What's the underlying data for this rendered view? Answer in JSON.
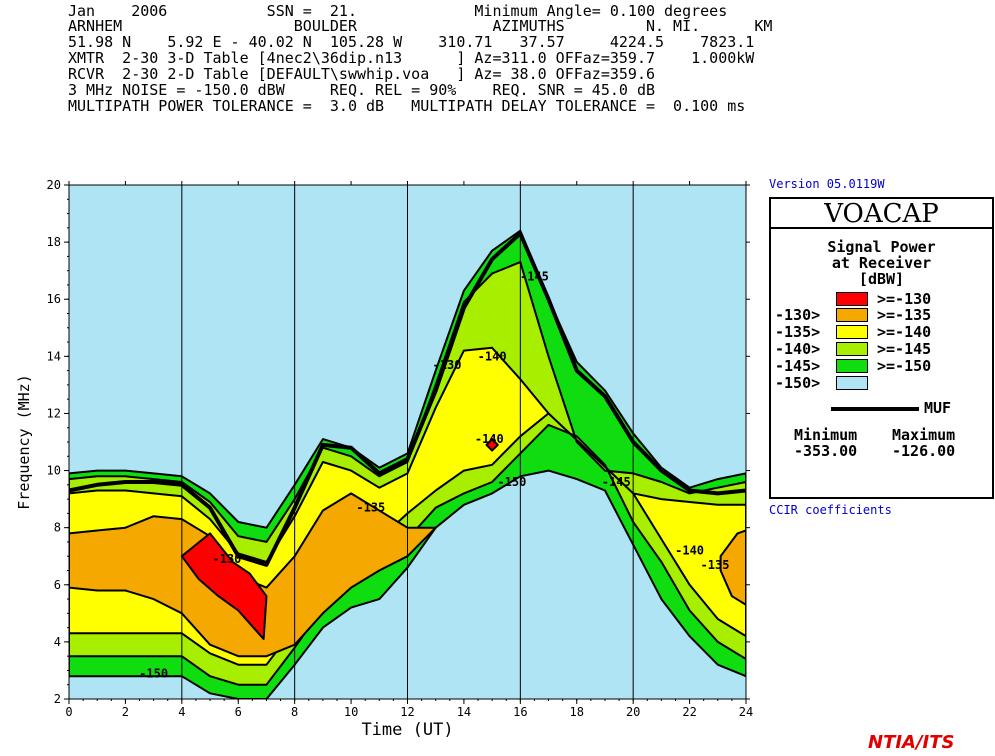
{
  "header": {
    "lines": [
      "Jan    2006           SSN =  21.             Minimum Angle= 0.100 degrees",
      "ARNHEM                   BOULDER               AZIMUTHS         N. MI.      KM",
      "51.98 N    5.92 E - 40.02 N  105.28 W    310.71   37.57     4224.5    7823.1",
      "XMTR  2-30 3-D Table [4nec2\\36dip.n13      ] Az=311.0 OFFaz=359.7    1.000kW",
      "RCVR  2-30 2-D Table [DEFAULT\\swwhip.voa   ] Az= 38.0 OFFaz=359.6",
      "3 MHz NOISE = -150.0 dBW     REQ. REL = 90%    REQ. SNR = 45.0 dB",
      "MULTIPATH POWER TOLERANCE =  3.0 dB   MULTIPATH DELAY TOLERANCE =  0.100 ms"
    ]
  },
  "version": "Version 05.0119W",
  "coefficients": "CCIR coefficients",
  "footer": "NTIA/ITS",
  "legend": {
    "app": "VOACAP",
    "title_lines": [
      "Signal Power",
      "at Receiver",
      "[dBW]"
    ],
    "entries": [
      {
        "left": "",
        "right": ">=-130",
        "color": "#ff0000"
      },
      {
        "left": "-130>",
        "right": ">=-135",
        "color": "#f5a800"
      },
      {
        "left": "-135>",
        "right": ">=-140",
        "color": "#ffff00"
      },
      {
        "left": "-140>",
        "right": ">=-145",
        "color": "#a8ee00"
      },
      {
        "left": "-145>",
        "right": ">=-150",
        "color": "#10dd10"
      },
      {
        "left": "-150>",
        "right": "",
        "color": "#aee4f4"
      }
    ],
    "muf_label": "MUF",
    "min_label": "Minimum",
    "max_label": "Maximum",
    "min_value": "-353.00",
    "max_value": "-126.00"
  },
  "chart_data": {
    "type": "heatmap",
    "xlabel": "Time (UT)",
    "ylabel": "Frequency (MHz)",
    "xlim": [
      0,
      24
    ],
    "ylim": [
      2,
      20
    ],
    "x_ticks": [
      0,
      2,
      4,
      6,
      8,
      10,
      12,
      14,
      16,
      18,
      20,
      22,
      24
    ],
    "y_ticks": [
      2,
      4,
      6,
      8,
      10,
      12,
      14,
      16,
      18,
      20
    ],
    "background_color": "#aee4f4",
    "regions": [
      {
        "level": ">=-150",
        "color": "#10dd10",
        "upper": [
          [
            0,
            9.9
          ],
          [
            1,
            10.0
          ],
          [
            2,
            10.0
          ],
          [
            3,
            9.9
          ],
          [
            4,
            9.8
          ],
          [
            5,
            9.2
          ],
          [
            6,
            8.2
          ],
          [
            7,
            8.0
          ],
          [
            8,
            9.5
          ],
          [
            9,
            11.1
          ],
          [
            10,
            10.8
          ],
          [
            11,
            10.1
          ],
          [
            12,
            10.6
          ],
          [
            13,
            13.5
          ],
          [
            14,
            16.3
          ],
          [
            15,
            17.7
          ],
          [
            16,
            18.4
          ],
          [
            17,
            16.0
          ],
          [
            18,
            13.8
          ],
          [
            19,
            12.8
          ],
          [
            20,
            11.3
          ],
          [
            21,
            10.1
          ],
          [
            22,
            9.4
          ],
          [
            23,
            9.7
          ],
          [
            24,
            9.9
          ]
        ],
        "lower": [
          [
            0,
            2.8
          ],
          [
            1,
            2.8
          ],
          [
            2,
            2.8
          ],
          [
            3,
            2.8
          ],
          [
            4,
            2.8
          ],
          [
            5,
            2.2
          ],
          [
            6,
            2.0
          ],
          [
            7,
            2.0
          ],
          [
            8,
            3.2
          ],
          [
            9,
            4.5
          ],
          [
            10,
            5.2
          ],
          [
            11,
            5.5
          ],
          [
            12,
            6.6
          ],
          [
            13,
            8.0
          ],
          [
            14,
            8.8
          ],
          [
            15,
            9.2
          ],
          [
            16,
            9.8
          ],
          [
            17,
            10.0
          ],
          [
            18,
            9.7
          ],
          [
            19,
            9.3
          ],
          [
            20,
            7.4
          ],
          [
            21,
            5.5
          ],
          [
            22,
            4.2
          ],
          [
            23,
            3.2
          ],
          [
            24,
            2.8
          ]
        ]
      },
      {
        "level": ">=-145",
        "color": "#a8ee00",
        "upper": [
          [
            0,
            9.7
          ],
          [
            1,
            9.8
          ],
          [
            2,
            9.8
          ],
          [
            3,
            9.7
          ],
          [
            4,
            9.6
          ],
          [
            5,
            8.9
          ],
          [
            6,
            7.7
          ],
          [
            7,
            7.5
          ],
          [
            8,
            9.0
          ],
          [
            9,
            10.8
          ],
          [
            10,
            10.5
          ],
          [
            11,
            9.8
          ],
          [
            12,
            10.3
          ],
          [
            13,
            13.0
          ],
          [
            14,
            15.9
          ],
          [
            15,
            16.9
          ],
          [
            16,
            17.3
          ],
          [
            17,
            14.0
          ],
          [
            18,
            11.0
          ],
          [
            19,
            10.0
          ],
          [
            20,
            9.9
          ],
          [
            21,
            9.6
          ],
          [
            22,
            9.2
          ],
          [
            23,
            9.4
          ],
          [
            24,
            9.6
          ]
        ],
        "lower": [
          [
            0,
            3.5
          ],
          [
            1,
            3.5
          ],
          [
            2,
            3.5
          ],
          [
            3,
            3.5
          ],
          [
            4,
            3.5
          ],
          [
            5,
            2.8
          ],
          [
            6,
            2.5
          ],
          [
            7,
            2.5
          ],
          [
            8,
            3.8
          ],
          [
            9,
            5.2
          ],
          [
            10,
            6.2
          ],
          [
            11,
            6.5
          ],
          [
            12,
            7.6
          ],
          [
            13,
            8.7
          ],
          [
            14,
            9.2
          ],
          [
            15,
            9.6
          ],
          [
            16,
            10.6
          ],
          [
            17,
            11.6
          ],
          [
            18,
            11.2
          ],
          [
            19,
            10.2
          ],
          [
            20,
            8.2
          ],
          [
            21,
            6.8
          ],
          [
            22,
            5.1
          ],
          [
            23,
            4.0
          ],
          [
            24,
            3.4
          ]
        ]
      },
      {
        "level": ">=-140",
        "color": "#ffff00",
        "upper": [
          [
            0,
            9.2
          ],
          [
            1,
            9.3
          ],
          [
            2,
            9.3
          ],
          [
            3,
            9.2
          ],
          [
            4,
            9.1
          ],
          [
            5,
            8.3
          ],
          [
            6,
            7.1
          ],
          [
            7,
            6.8
          ],
          [
            8,
            8.4
          ],
          [
            9,
            10.3
          ],
          [
            10,
            10.0
          ],
          [
            11,
            9.4
          ],
          [
            12,
            9.9
          ],
          [
            13,
            12.2
          ],
          [
            14,
            14.2
          ],
          [
            15,
            14.3
          ],
          [
            16,
            13.2
          ],
          [
            17,
            12.0
          ],
          [
            20,
            9.2
          ],
          [
            21,
            9.0
          ],
          [
            22,
            8.9
          ],
          [
            23,
            8.8
          ],
          [
            24,
            8.8
          ]
        ],
        "lower": [
          [
            0,
            4.3
          ],
          [
            1,
            4.3
          ],
          [
            2,
            4.3
          ],
          [
            3,
            4.3
          ],
          [
            4,
            4.3
          ],
          [
            5,
            3.6
          ],
          [
            6,
            3.2
          ],
          [
            7,
            3.2
          ],
          [
            8,
            4.5
          ],
          [
            9,
            6.2
          ],
          [
            10,
            7.1
          ],
          [
            11,
            7.6
          ],
          [
            12,
            8.5
          ],
          [
            13,
            9.3
          ],
          [
            14,
            10.0
          ],
          [
            15,
            10.2
          ],
          [
            16,
            11.2
          ],
          [
            17,
            12.0
          ],
          [
            20,
            9.2
          ],
          [
            21,
            7.6
          ],
          [
            22,
            6.0
          ],
          [
            23,
            4.8
          ],
          [
            24,
            4.2
          ]
        ]
      },
      {
        "level": ">=-135",
        "color": "#f5a800",
        "upper": [
          [
            0,
            7.8
          ],
          [
            1,
            7.9
          ],
          [
            2,
            8.0
          ],
          [
            3,
            8.4
          ],
          [
            4,
            8.3
          ],
          [
            5,
            7.7
          ],
          [
            6,
            6.3
          ],
          [
            7,
            5.9
          ],
          [
            8,
            7.0
          ],
          [
            9,
            8.6
          ],
          [
            10,
            9.2
          ],
          [
            11,
            8.6
          ],
          [
            12,
            8.0
          ],
          [
            13,
            8.0
          ],
          [
            12,
            7.0
          ],
          [
            11,
            6.5
          ],
          [
            10,
            5.9
          ],
          [
            9,
            5.0
          ],
          [
            8,
            3.9
          ],
          [
            7,
            3.5
          ],
          [
            6,
            3.5
          ],
          [
            5,
            3.9
          ],
          [
            4,
            5.0
          ],
          [
            3,
            5.5
          ],
          [
            2,
            5.8
          ],
          [
            1,
            5.8
          ],
          [
            0,
            5.9
          ]
        ],
        "lower": []
      },
      {
        "level": ">=-135",
        "color": "#f5a800",
        "upper": [
          [
            23.1,
            7.0
          ],
          [
            23.7,
            7.8
          ],
          [
            24,
            7.9
          ],
          [
            24,
            5.3
          ],
          [
            23.5,
            5.6
          ],
          [
            23.1,
            6.5
          ]
        ],
        "lower": []
      },
      {
        "level": ">=-130",
        "color": "#ff0000",
        "upper": [
          [
            4,
            7.0
          ],
          [
            5,
            7.8
          ],
          [
            5.8,
            6.8
          ],
          [
            6.4,
            6.4
          ],
          [
            7.0,
            5.6
          ],
          [
            6.9,
            4.1
          ],
          [
            6.0,
            5.1
          ],
          [
            5.3,
            5.6
          ],
          [
            4.6,
            6.2
          ]
        ],
        "lower": []
      },
      {
        "level": ">=-130",
        "color": "#ff0000",
        "upper": [
          [
            14.8,
            10.9
          ],
          [
            15.0,
            11.1
          ],
          [
            15.2,
            10.9
          ],
          [
            15.0,
            10.7
          ]
        ],
        "lower": []
      }
    ],
    "muf": [
      [
        0,
        9.3
      ],
      [
        1,
        9.5
      ],
      [
        2,
        9.6
      ],
      [
        3,
        9.6
      ],
      [
        4,
        9.5
      ],
      [
        5,
        8.7
      ],
      [
        6,
        7.0
      ],
      [
        7,
        6.7
      ],
      [
        8,
        8.7
      ],
      [
        9,
        10.9
      ],
      [
        10,
        10.8
      ],
      [
        11,
        9.9
      ],
      [
        12,
        10.4
      ],
      [
        13,
        12.8
      ],
      [
        14,
        15.7
      ],
      [
        15,
        17.4
      ],
      [
        16,
        18.3
      ],
      [
        17,
        16.0
      ],
      [
        18,
        13.5
      ],
      [
        19,
        12.6
      ],
      [
        20,
        11.0
      ],
      [
        21,
        10.0
      ],
      [
        22,
        9.3
      ],
      [
        23,
        9.2
      ],
      [
        24,
        9.3
      ]
    ],
    "contour_labels": [
      {
        "text": "-130",
        "x": 5.6,
        "y": 6.9
      },
      {
        "text": "-135",
        "x": 10.7,
        "y": 8.7
      },
      {
        "text": "-130",
        "x": 13.4,
        "y": 13.7
      },
      {
        "text": "-140",
        "x": 15.0,
        "y": 14.0
      },
      {
        "text": "-145",
        "x": 16.5,
        "y": 16.8
      },
      {
        "text": "-140",
        "x": 14.9,
        "y": 11.1
      },
      {
        "text": "-150",
        "x": 15.7,
        "y": 9.6
      },
      {
        "text": "-145",
        "x": 19.4,
        "y": 9.6
      },
      {
        "text": "-140",
        "x": 22.0,
        "y": 7.2
      },
      {
        "text": "-135",
        "x": 22.9,
        "y": 6.7
      },
      {
        "text": "-150",
        "x": 3.0,
        "y": 2.9
      }
    ]
  }
}
